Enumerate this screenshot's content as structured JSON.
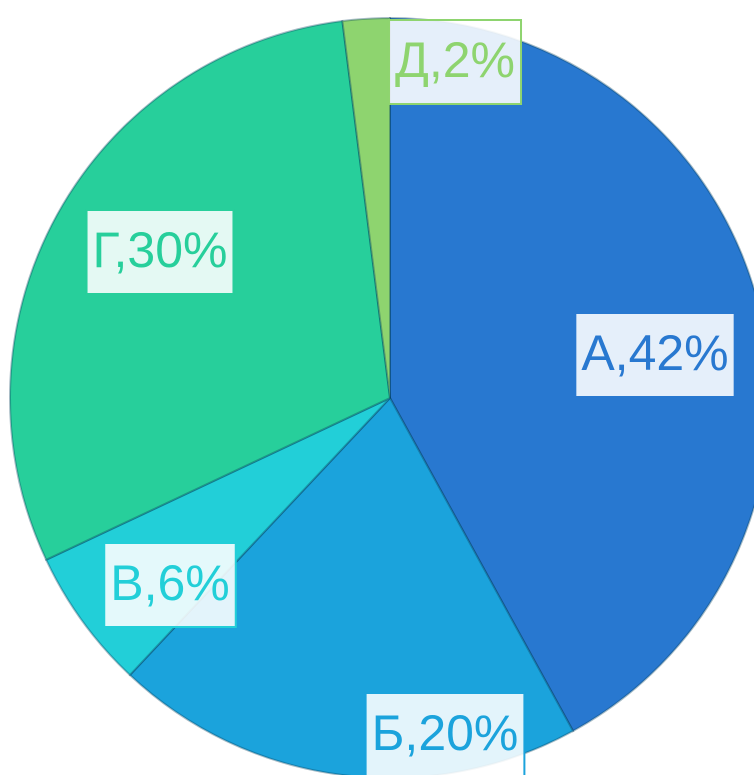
{
  "chart_data": {
    "type": "pie",
    "values": [
      42,
      20,
      6,
      30,
      2
    ],
    "value_labels": [
      "А,42%",
      "Б,20%",
      "В,6%",
      "Г,30%",
      "Д,2%"
    ],
    "colors": [
      "#2878d0",
      "#1ba3dc",
      "#22cfd8",
      "#27cf9b",
      "#8ed46f"
    ]
  }
}
